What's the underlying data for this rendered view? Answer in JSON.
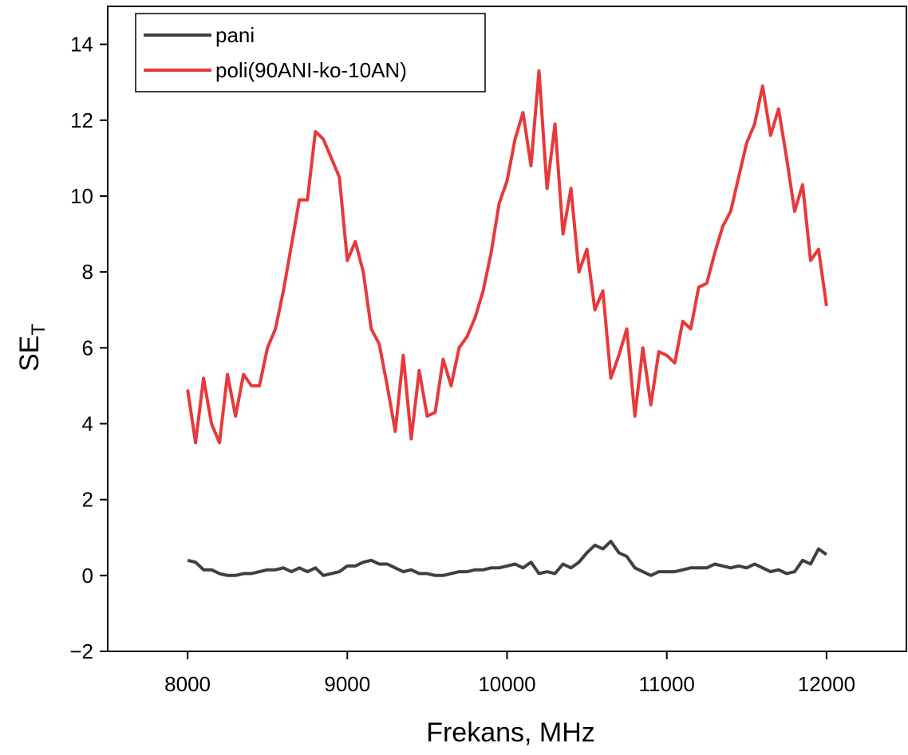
{
  "chart_data": {
    "type": "line",
    "xlabel": "Frekans, MHz",
    "ylabel": "SE",
    "ylabel_subscript": "T",
    "xlim": [
      7500,
      12500
    ],
    "ylim": [
      -2,
      15
    ],
    "xticks": [
      8000,
      9000,
      10000,
      11000,
      12000
    ],
    "yticks": [
      {
        "value": -2,
        "label": "−2"
      },
      0,
      2,
      4,
      6,
      8,
      10,
      12,
      14
    ],
    "legend": "upper left",
    "x": [
      8000,
      8050,
      8100,
      8150,
      8200,
      8250,
      8300,
      8350,
      8400,
      8450,
      8500,
      8550,
      8600,
      8650,
      8700,
      8750,
      8800,
      8850,
      8900,
      8950,
      9000,
      9050,
      9100,
      9150,
      9200,
      9250,
      9300,
      9350,
      9400,
      9450,
      9500,
      9550,
      9600,
      9650,
      9700,
      9750,
      9800,
      9850,
      9900,
      9950,
      10000,
      10050,
      10100,
      10150,
      10200,
      10250,
      10300,
      10350,
      10400,
      10450,
      10500,
      10550,
      10600,
      10650,
      10700,
      10750,
      10800,
      10850,
      10900,
      10950,
      11000,
      11050,
      11100,
      11150,
      11200,
      11250,
      11300,
      11350,
      11400,
      11450,
      11500,
      11550,
      11600,
      11650,
      11700,
      11750,
      11800,
      11850,
      11900,
      11950,
      12000
    ],
    "series": [
      {
        "name": "pani",
        "color": "#404040",
        "values": [
          0.4,
          0.35,
          0.15,
          0.15,
          0.05,
          0.0,
          0.0,
          0.05,
          0.05,
          0.1,
          0.15,
          0.15,
          0.2,
          0.1,
          0.2,
          0.1,
          0.2,
          0.0,
          0.05,
          0.1,
          0.25,
          0.25,
          0.35,
          0.4,
          0.3,
          0.3,
          0.2,
          0.1,
          0.15,
          0.05,
          0.05,
          0.0,
          0.0,
          0.05,
          0.1,
          0.1,
          0.15,
          0.15,
          0.2,
          0.2,
          0.25,
          0.3,
          0.2,
          0.35,
          0.05,
          0.1,
          0.05,
          0.3,
          0.2,
          0.35,
          0.6,
          0.8,
          0.7,
          0.9,
          0.6,
          0.5,
          0.2,
          0.1,
          0.0,
          0.1,
          0.1,
          0.1,
          0.15,
          0.2,
          0.2,
          0.2,
          0.3,
          0.25,
          0.2,
          0.25,
          0.2,
          0.3,
          0.2,
          0.1,
          0.15,
          0.05,
          0.1,
          0.4,
          0.3,
          0.7,
          0.55
        ]
      },
      {
        "name": "poli(90ANI-ko-10AN)",
        "color": "#e8393a",
        "values": [
          4.9,
          3.5,
          5.2,
          4.0,
          3.5,
          5.3,
          4.2,
          5.3,
          5.0,
          5.0,
          6.0,
          6.5,
          7.5,
          8.7,
          9.9,
          9.9,
          11.7,
          11.5,
          11.0,
          10.5,
          8.3,
          8.8,
          8.0,
          6.5,
          6.1,
          5.0,
          3.8,
          5.8,
          3.6,
          5.4,
          4.2,
          4.3,
          5.7,
          5.0,
          6.0,
          6.3,
          6.8,
          7.5,
          8.5,
          9.8,
          10.4,
          11.5,
          12.2,
          10.8,
          13.3,
          10.2,
          11.9,
          9.0,
          10.2,
          8.0,
          8.6,
          7.0,
          7.5,
          5.2,
          5.8,
          6.5,
          4.2,
          6.0,
          4.5,
          5.9,
          5.8,
          5.6,
          6.7,
          6.5,
          7.6,
          7.7,
          8.5,
          9.2,
          9.6,
          10.5,
          11.4,
          11.9,
          12.9,
          11.6,
          12.3,
          11.0,
          9.6,
          10.3,
          8.3,
          8.6,
          7.1
        ]
      }
    ]
  }
}
